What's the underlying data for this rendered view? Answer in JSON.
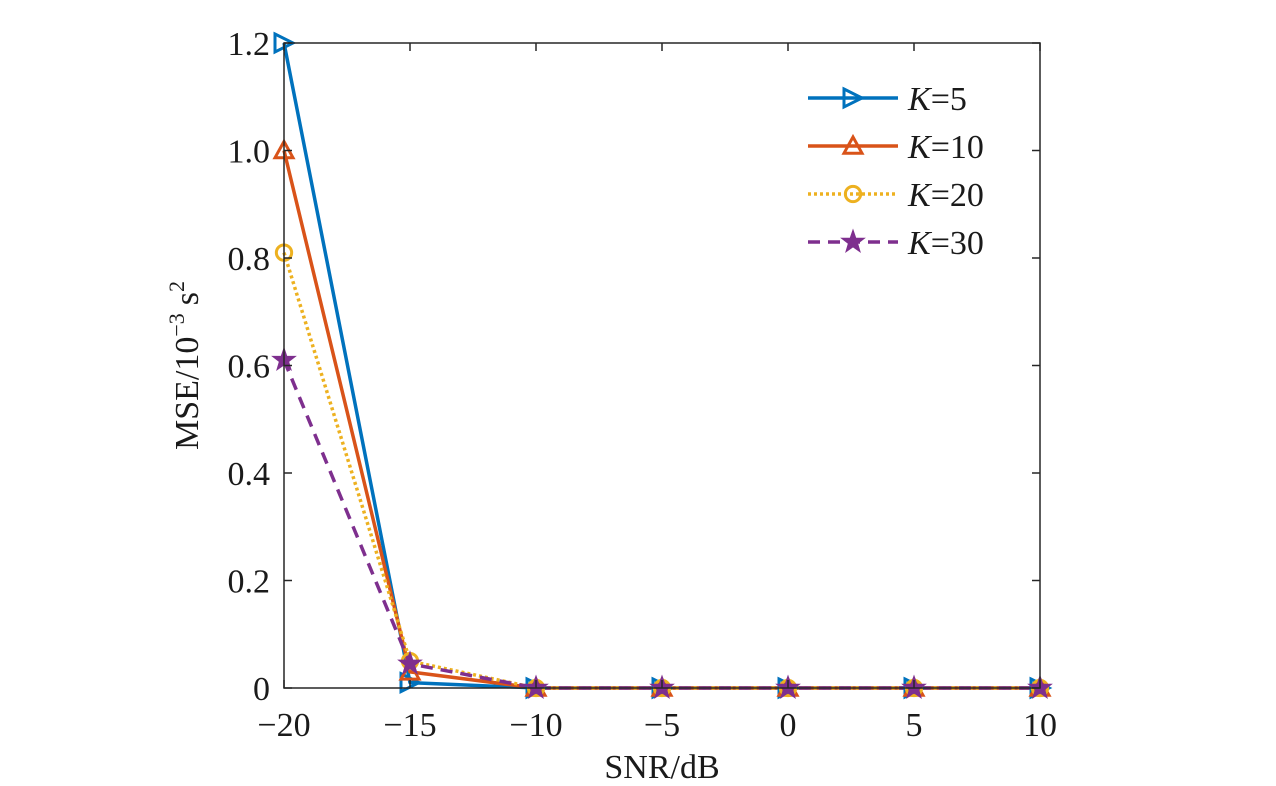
{
  "chart_data": {
    "type": "line",
    "x": [
      -20,
      -15,
      -10,
      -5,
      0,
      5,
      10
    ],
    "xticks": [
      "−20",
      "−15",
      "−10",
      "−5",
      "0",
      "5",
      "10"
    ],
    "yticks": [
      "0",
      "0.2",
      "0.4",
      "0.6",
      "0.8",
      "1.0",
      "1.2"
    ],
    "xlim": [
      -20,
      10
    ],
    "ylim": [
      0,
      1.2
    ],
    "xlabel": "SNR/dB",
    "ylabel": {
      "base": "MSE/10",
      "exp": "−3",
      "unit": "s",
      "unit_exp": "2"
    },
    "legend_position": "top-right",
    "series": [
      {
        "name": "K=5",
        "name_var": "K",
        "name_rest": "=5",
        "color": "#0072BD",
        "marker": "triangle-right",
        "dash": "solid",
        "values": [
          1.2,
          0.01,
          0.0,
          0.0,
          0.0,
          0.0,
          0.0
        ]
      },
      {
        "name": "K=10",
        "name_var": "K",
        "name_rest": "=10",
        "color": "#D95319",
        "marker": "triangle-up",
        "dash": "solid",
        "values": [
          1.0,
          0.03,
          0.0,
          0.0,
          0.0,
          0.0,
          0.0
        ]
      },
      {
        "name": "K=20",
        "name_var": "K",
        "name_rest": "=20",
        "color": "#EDB120",
        "marker": "circle",
        "dash": "dotted",
        "values": [
          0.81,
          0.05,
          0.0,
          0.0,
          0.0,
          0.0,
          0.0
        ]
      },
      {
        "name": "K=30",
        "name_var": "K",
        "name_rest": "=30",
        "color": "#7E2F8E",
        "marker": "star",
        "dash": "dashed",
        "values": [
          0.61,
          0.045,
          0.0,
          0.0,
          0.0,
          0.0,
          0.0
        ]
      }
    ]
  }
}
